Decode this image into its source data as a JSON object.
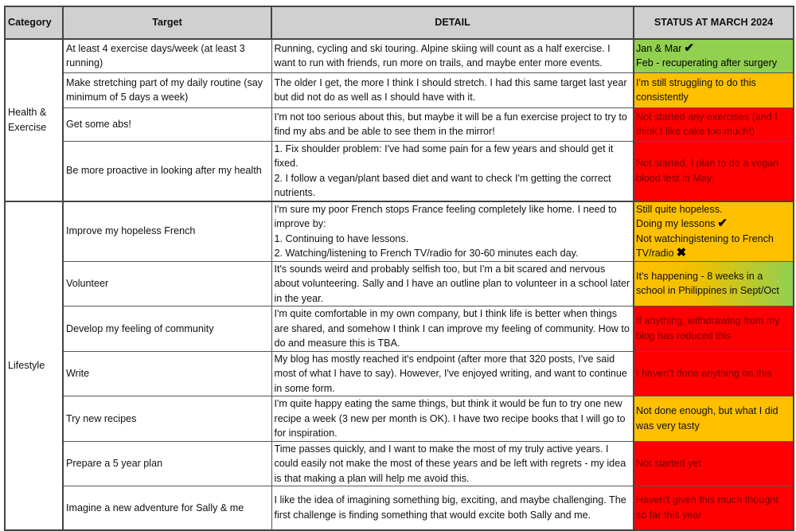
{
  "headers": {
    "category": "Category",
    "target": "Target",
    "detail": "DETAIL",
    "status": "STATUS AT MARCH 2024"
  },
  "colors": {
    "green": "#92d050",
    "orange": "#ffc000",
    "red": "#ff0000",
    "header": "#d0d0d0"
  },
  "groups": [
    {
      "category": "Health & Exercise",
      "rows": [
        {
          "target": "At least 4 exercise days/week (at least 3 running)",
          "h": 42,
          "detail": [
            "Running, cycling and ski touring. Alpine skiing will count as a half exercise. I want to run with friends, run more on trails, and maybe enter more events."
          ],
          "status_color": "green",
          "status": [
            {
              "text": "Jan & Mar",
              "icon": "check-icon"
            },
            {
              "text": "Feb - recuperating after surgery"
            }
          ]
        },
        {
          "target": "Make stretching part of my daily routine (say minimum of 5 days a week)",
          "h": 44,
          "detail": [
            "The older I get, the more I think I should stretch. I had this same target last year but did not do as well as I should have with it."
          ],
          "status_color": "orange",
          "status": [
            {
              "text": "I'm still struggling to do this consistently"
            }
          ]
        },
        {
          "target": "Get some abs!",
          "h": 42,
          "detail": [
            "I'm not too serious about this, but maybe it will be a fun exercise project to try to find my abs and be able to see them in the mirror!"
          ],
          "status_color": "red",
          "status": [
            {
              "text": "Not started any exercises (and I think I like cake too much!)"
            }
          ]
        },
        {
          "target": "Be more proactive in looking after my health",
          "h": 74,
          "detail": [
            "1. Fix shoulder problem: I've had some pain for a few years and should get it fixed.",
            "2. I follow a vegan/plant based diet and want to check I'm getting the correct nutrients."
          ],
          "status_color": "red",
          "status": [
            {
              "text": "Not started. I plan to do a vegan blood test in May."
            }
          ]
        }
      ]
    },
    {
      "category": "Lifestyle",
      "rows": [
        {
          "target": "Improve my hopeless French",
          "h": 74,
          "detail": [
            "I'm sure my poor French stops France feeling completely like home. I need to improve by:",
            "1. Continuing to have lessons.",
            "2. Watching/listening to French TV/radio for 30-60 minutes each day."
          ],
          "status_color": "orange",
          "status": [
            {
              "text": "Still quite hopeless."
            },
            {
              "text": "Doing my lessons",
              "icon": "check-icon"
            },
            {
              "text": "Not watchingistening to French TV/radio",
              "icon": "cross-icon"
            }
          ]
        },
        {
          "target": "Volunteer",
          "h": 56,
          "detail": [
            "It's sounds weird and probably selfish too, but I'm a bit scared and nervous about volunteering. Sally and I have an outline plan to volunteer in a school later in the year."
          ],
          "status_color": "grad",
          "status": [
            {
              "text": "It's happening - 8 weeks in  a school in Philippines in Sept/Oct"
            }
          ]
        },
        {
          "target": "Develop my feeling of community",
          "h": 56,
          "detail": [
            "I'm quite comfortable in my own company, but I think life is better when things are shared, and somehow I think I can improve my feeling of community. How to do and measure this is TBA."
          ],
          "status_color": "red",
          "status": [
            {
              "text": "If anything, withdrawing from my blog has reduced this"
            }
          ]
        },
        {
          "target": "Write",
          "h": 56,
          "detail": [
            "My blog has mostly reached it's endpoint (after more that 320 posts, I've said most of what I have to say). However, I've enjoyed writing, and want to continue in some form."
          ],
          "status_color": "red",
          "status": [
            {
              "text": "I haven't done anything on this"
            }
          ]
        },
        {
          "target": "Try new recipes",
          "h": 56,
          "detail": [
            "I'm quite happy eating the same things, but think it would be fun to try one new recipe a week (3 new per month is OK). I have two recipe books that I will go to for inspiration."
          ],
          "status_color": "orange",
          "status": [
            {
              "text": "Not done enough, but what I did was very tasty"
            }
          ]
        },
        {
          "target": "Prepare a 5 year plan",
          "h": 56,
          "detail": [
            "Time passes quickly, and I want to make the most of my truly active years. I could easily not make the most of these years and be left with regrets - my idea is that making a plan will help me avoid this."
          ],
          "status_color": "red",
          "status": [
            {
              "text": "Not started yet"
            }
          ]
        },
        {
          "target": "Imagine a new adventure for Sally & me",
          "h": 55,
          "detail": [
            "I like the idea of imagining something big, exciting, and maybe challenging. The first challenge is finding something that would excite both Sally and me."
          ],
          "status_color": "red",
          "status": [
            {
              "text": "Haven't given this much thought so far this year"
            }
          ]
        }
      ]
    }
  ]
}
